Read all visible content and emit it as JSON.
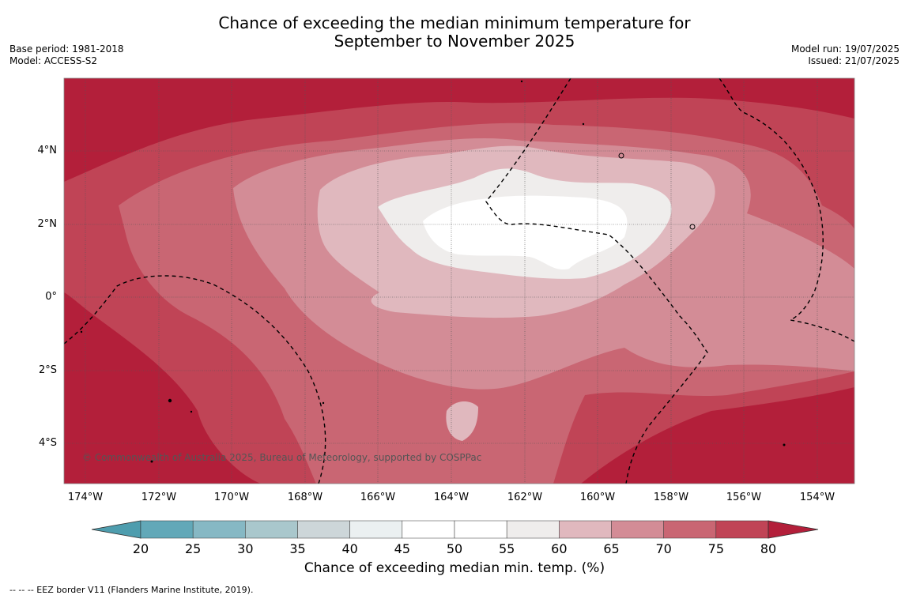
{
  "title": {
    "line1": "Chance of exceeding the median minimum temperature for",
    "line2": "September to November 2025"
  },
  "meta_left": {
    "base_period": "Base period: 1981-2018",
    "model": "Model: ACCESS-S2"
  },
  "meta_right": {
    "model_run": "Model run: 19/07/2025",
    "issued": "Issued: 21/07/2025"
  },
  "map": {
    "latitude_ticks": [
      "4°N",
      "2°N",
      "0°",
      "2°S",
      "4°S"
    ],
    "longitude_ticks": [
      "174°W",
      "172°W",
      "170°W",
      "168°W",
      "166°W",
      "164°W",
      "162°W",
      "160°W",
      "158°W",
      "156°W",
      "154°W"
    ],
    "copyright": "© Commonwealth of Australia 2025, Bureau of Meteorology, supported by COSPPac",
    "colors": {
      "c80plus": "#b31f3a",
      "c75_80": "#c04456",
      "c70_75": "#c96673",
      "c65_70": "#d38c96",
      "c60_65": "#e0b8be",
      "c55_60": "#efedec",
      "c45_55": "#ffffff"
    }
  },
  "colorbar": {
    "ticks": [
      "20",
      "25",
      "30",
      "35",
      "40",
      "45",
      "50",
      "55",
      "60",
      "65",
      "70",
      "75",
      "80"
    ],
    "colors": [
      "#62a8b8",
      "#86b8c4",
      "#a9c7cc",
      "#cdd6d9",
      "#ebf0f1",
      "#ffffff",
      "#ffffff",
      "#efedec",
      "#e0b8be",
      "#d38c96",
      "#c96673",
      "#c04456"
    ],
    "low_arrow_color": "#4e9dae",
    "high_arrow_color": "#b31f3a",
    "label": "Chance of exceeding median min. temp. (%)"
  },
  "footnote": "--  --  -- EEZ border V11 (Flanders Marine Institute, 2019)."
}
